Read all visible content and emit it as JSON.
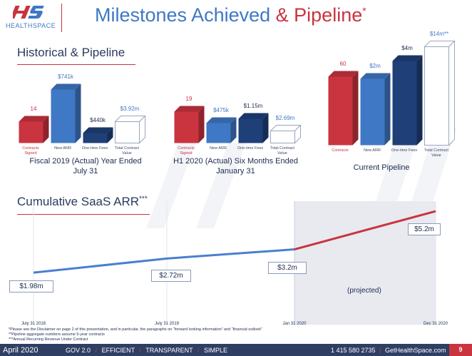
{
  "header": {
    "logo_mark": "HS",
    "logo_text": "HEALTHSPACE",
    "title_part1": "Milestones Achieved ",
    "title_part2": "& Pipeline",
    "title_sup": "*"
  },
  "historical": {
    "section_title": "Historical & Pipeline",
    "groups": [
      {
        "caption": "Fiscal 2019 (Actual) Year Ended July 31",
        "bars": [
          {
            "label": "Contracts Signed",
            "value_label": "14",
            "value": 14,
            "color": "#c9343f"
          },
          {
            "label": "New ARR",
            "value_label": "$741k",
            "value": 0.741,
            "color": "#3f78c4"
          },
          {
            "label": "One-time Fees",
            "value_label": "$440k",
            "value": 0.44,
            "color": "#1f3f78"
          },
          {
            "label": "Total Contract Value",
            "value_label": "$3.92m",
            "value": 3.92,
            "color": "#ffffff"
          }
        ]
      },
      {
        "caption": "H1 2020 (Actual) Six Months Ended January 31",
        "bars": [
          {
            "label": "Contracts Signed",
            "value_label": "19",
            "value": 19,
            "color": "#c9343f"
          },
          {
            "label": "New ARR",
            "value_label": "$475k",
            "value": 0.475,
            "color": "#3f78c4"
          },
          {
            "label": "One-time Fees",
            "value_label": "$1.15m",
            "value": 1.15,
            "color": "#1f3f78"
          },
          {
            "label": "Total Contract Value",
            "value_label": "$2.69m",
            "value": 2.69,
            "color": "#ffffff"
          }
        ]
      },
      {
        "caption": "Current Pipeline",
        "bars": [
          {
            "label": "Contracts",
            "value_label": "60",
            "value": 60,
            "color": "#c9343f"
          },
          {
            "label": "New ARR",
            "value_label": "$2m",
            "value": 2,
            "color": "#3f78c4"
          },
          {
            "label": "One-time Fees",
            "value_label": "$4m",
            "value": 4,
            "color": "#1f3f78"
          },
          {
            "label": "Total Contract Value",
            "value_label": "$14m**",
            "value": 14,
            "color": "#ffffff"
          }
        ]
      }
    ]
  },
  "cumulative": {
    "section_title": "Cumulative SaaS ARR",
    "section_sup": "***",
    "projected_label": "(projected)"
  },
  "chart_data": [
    {
      "type": "bar",
      "title": "Fiscal 2019 (Actual) Year Ended July 31",
      "categories": [
        "Contracts Signed",
        "New ARR",
        "One-time Fees",
        "Total Contract Value"
      ],
      "values": [
        14,
        0.741,
        0.44,
        3.92
      ]
    },
    {
      "type": "bar",
      "title": "H1 2020 (Actual) Six Months Ended January 31",
      "categories": [
        "Contracts Signed",
        "New ARR",
        "One-time Fees",
        "Total Contract Value"
      ],
      "values": [
        19,
        0.475,
        1.15,
        2.69
      ]
    },
    {
      "type": "bar",
      "title": "Current Pipeline",
      "categories": [
        "Contracts",
        "New ARR",
        "One-time Fees",
        "Total Contract Value"
      ],
      "values": [
        60,
        2,
        4,
        14
      ]
    },
    {
      "type": "line",
      "title": "Cumulative SaaS ARR",
      "x": [
        "July 31 2018",
        "July 31 2019",
        "Jan 31 2020",
        "Dec 31 2020"
      ],
      "series": [
        {
          "values": [
            1.98,
            2.72,
            3.2,
            5.2
          ]
        }
      ],
      "value_labels": [
        "$1.98m",
        "$2.72m",
        "$3.2m",
        "$5.2m"
      ],
      "projected_from": "Jan 31 2020",
      "colors": {
        "actual": "#4a7fd0",
        "projected": "#c9343f"
      }
    }
  ],
  "footnotes": [
    "*Please see the Disclaimer on page 2 of this presentation, and in particular, the paragraphs on “forward looking information” and “financial outlook”",
    "**Pipeline aggregate numbers assume 5-year contracts",
    "***Annual Recurring Revenue Under Contract"
  ],
  "footer": {
    "date": "April 2020",
    "tagline": [
      "GOV 2.0",
      "EFFICIENT",
      "TRANSPARENT",
      "SIMPLE"
    ],
    "phone": "1 415 580 2735",
    "website": "GetHealthSpace.com",
    "page": "9"
  },
  "colors": {
    "brand_red": "#c9343f",
    "brand_blue": "#3f78c4",
    "navy": "#1f3f78",
    "footer_bg": "#2f3e63"
  }
}
